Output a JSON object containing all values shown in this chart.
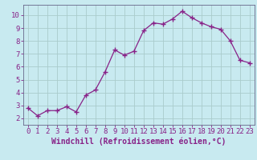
{
  "x": [
    0,
    1,
    2,
    3,
    4,
    5,
    6,
    7,
    8,
    9,
    10,
    11,
    12,
    13,
    14,
    15,
    16,
    17,
    18,
    19,
    20,
    21,
    22,
    23
  ],
  "y": [
    2.8,
    2.2,
    2.6,
    2.6,
    2.9,
    2.5,
    3.8,
    4.2,
    5.6,
    7.3,
    6.9,
    7.2,
    8.8,
    9.4,
    9.3,
    9.7,
    10.3,
    9.8,
    9.4,
    9.1,
    8.9,
    8.0,
    6.5,
    6.3
  ],
  "line_color": "#993399",
  "marker": "+",
  "marker_size": 4,
  "linewidth": 0.9,
  "xlabel": "Windchill (Refroidissement éolien,°C)",
  "xlim": [
    -0.5,
    23.5
  ],
  "ylim": [
    1.5,
    10.8
  ],
  "yticks": [
    2,
    3,
    4,
    5,
    6,
    7,
    8,
    9,
    10
  ],
  "xticks": [
    0,
    1,
    2,
    3,
    4,
    5,
    6,
    7,
    8,
    9,
    10,
    11,
    12,
    13,
    14,
    15,
    16,
    17,
    18,
    19,
    20,
    21,
    22,
    23
  ],
  "background_color": "#c8eaf0",
  "grid_color": "#aacccc",
  "tick_label_fontsize": 6.5,
  "xlabel_fontsize": 7,
  "line_purple": "#882288",
  "spine_color": "#666688"
}
